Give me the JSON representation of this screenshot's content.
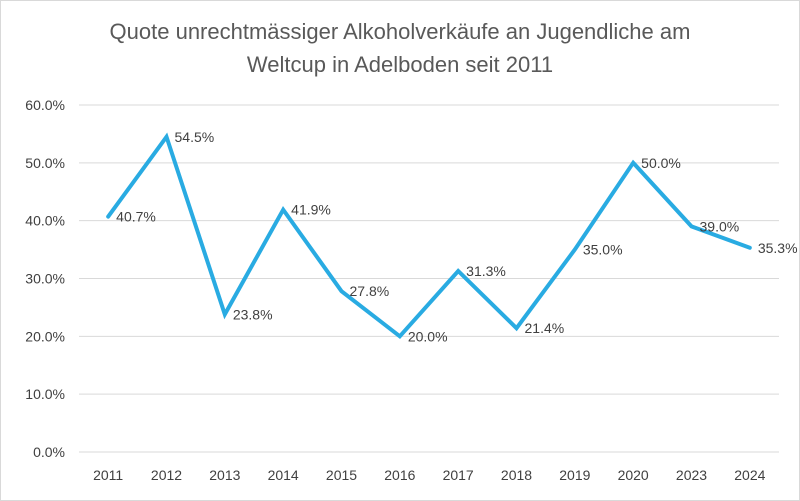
{
  "chart_data": {
    "type": "line",
    "title": "Quote unrechtmässiger Alkoholverkäufe an Jugendliche am Weltcup in Adelboden seit 2011",
    "title_lines": [
      "Quote unrechtmässiger Alkoholverkäufe an Jugendliche am",
      "Weltcup in Adelboden seit 2011"
    ],
    "xlabel": "",
    "ylabel": "",
    "categories": [
      "2011",
      "2012",
      "2013",
      "2014",
      "2015",
      "2016",
      "2017",
      "2018",
      "2019",
      "2020",
      "2023",
      "2024"
    ],
    "series": [
      {
        "name": "Quote",
        "values": [
          40.7,
          54.5,
          23.8,
          41.9,
          27.8,
          20.0,
          31.3,
          21.4,
          35.0,
          50.0,
          39.0,
          35.3
        ],
        "labels": [
          "40.7%",
          "54.5%",
          "23.8%",
          "41.9%",
          "27.8%",
          "20.0%",
          "31.3%",
          "21.4%",
          "35.0%",
          "50.0%",
          "39.0%",
          "35.3%"
        ]
      }
    ],
    "ylim": [
      0,
      60
    ],
    "yticks": [
      0,
      10,
      20,
      30,
      40,
      50,
      60
    ],
    "ytick_labels": [
      "0.0%",
      "10.0%",
      "20.0%",
      "30.0%",
      "40.0%",
      "50.0%",
      "60.0%"
    ],
    "grid": true,
    "legend": "none",
    "colors": {
      "line": "#29abe2",
      "grid": "#d9d9d9",
      "text": "#404040",
      "title": "#595959"
    }
  }
}
